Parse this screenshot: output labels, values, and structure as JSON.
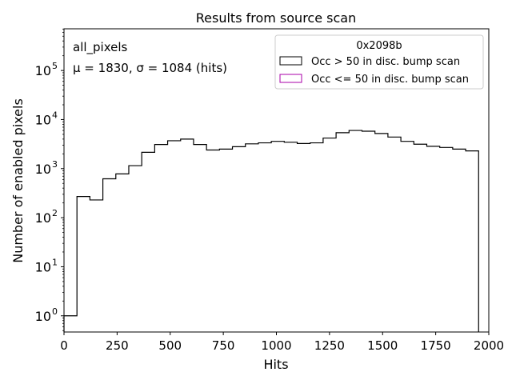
{
  "chart_data": {
    "type": "histogram",
    "title": "Results from source scan",
    "xlabel": "Hits",
    "ylabel": "Number of enabled pixels",
    "xlim": [
      0,
      2000
    ],
    "ylim_log10": [
      -0.33,
      5.85
    ],
    "yscale": "log",
    "x_ticks": [
      {
        "value": 0,
        "label": "0"
      },
      {
        "value": 250,
        "label": "250"
      },
      {
        "value": 500,
        "label": "500"
      },
      {
        "value": 750,
        "label": "750"
      },
      {
        "value": 1000,
        "label": "1000"
      },
      {
        "value": 1250,
        "label": "1250"
      },
      {
        "value": 1500,
        "label": "1500"
      },
      {
        "value": 1750,
        "label": "1750"
      },
      {
        "value": 2000,
        "label": "2000"
      }
    ],
    "y_ticks": [
      {
        "exp": 0,
        "label": "10",
        "sup": "0"
      },
      {
        "exp": 1,
        "label": "10",
        "sup": "1"
      },
      {
        "exp": 2,
        "label": "10",
        "sup": "2"
      },
      {
        "exp": 3,
        "label": "10",
        "sup": "3"
      },
      {
        "exp": 4,
        "label": "10",
        "sup": "4"
      },
      {
        "exp": 5,
        "label": "10",
        "sup": "5"
      }
    ],
    "annotations": {
      "selection": "all_pixels",
      "stats": "μ = 1830, σ = 1084 (hits)"
    },
    "legend": {
      "title": "0x2098b",
      "placement": "top-right",
      "entries": [
        {
          "label": "Occ > 50 in disc. bump scan",
          "color": "#000000"
        },
        {
          "label": "Occ <= 50 in disc. bump scan",
          "color": "#aa00aa"
        }
      ]
    },
    "bin_edges": [
      0,
      61,
      122,
      183,
      244,
      305,
      366,
      427,
      488,
      549,
      610,
      671,
      732,
      793,
      854,
      915,
      976,
      1037,
      1098,
      1159,
      1220,
      1281,
      1342,
      1403,
      1464,
      1525,
      1586,
      1647,
      1708,
      1769,
      1830,
      1891,
      1952
    ],
    "series": [
      {
        "name": "Occ > 50 in disc. bump scan",
        "values": [
          1,
          270,
          230,
          620,
          780,
          1150,
          2150,
          3100,
          3700,
          4000,
          3100,
          2400,
          2500,
          2800,
          3200,
          3350,
          3600,
          3450,
          3250,
          3350,
          4200,
          5400,
          6000,
          5800,
          5200,
          4400,
          3600,
          3150,
          2850,
          2700,
          2500,
          2300
        ]
      }
    ]
  }
}
